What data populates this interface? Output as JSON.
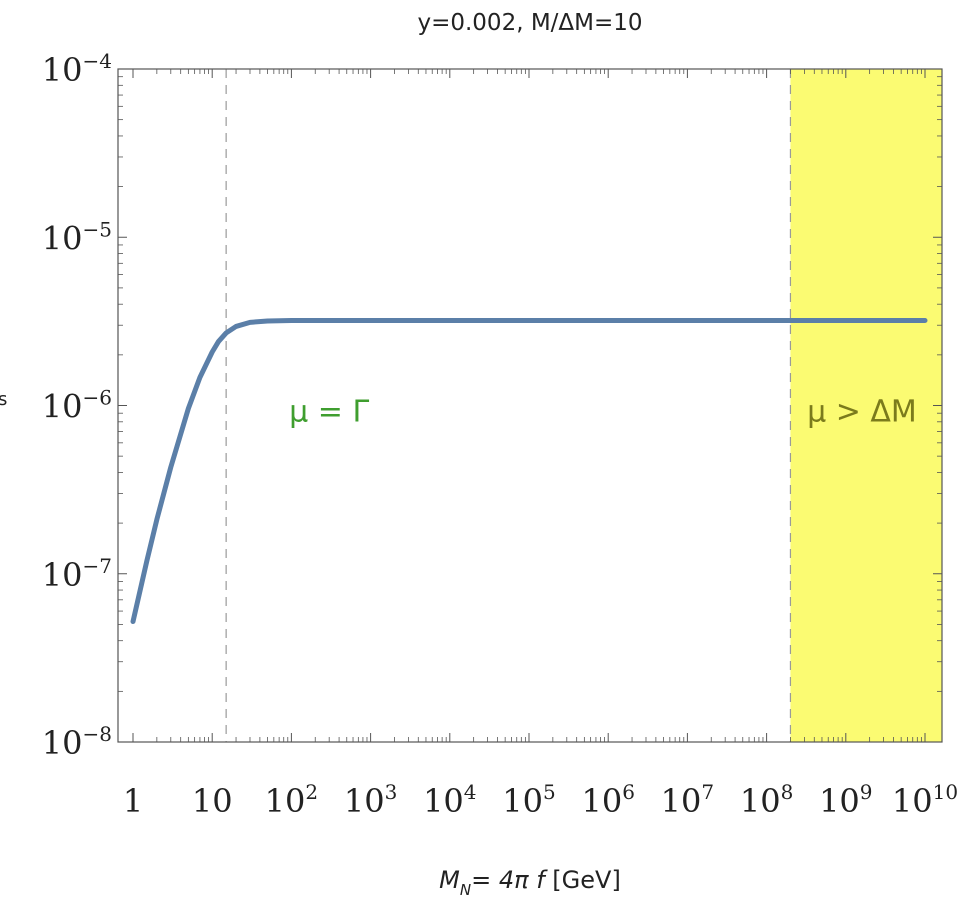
{
  "chart_data": {
    "type": "line",
    "title": "y=0.002, M/ΔM=10",
    "xlabel": "M_N= 4π f [GeV]",
    "xlabel_parts": {
      "main": "M",
      "sub": "N",
      "rest": "= 4π ",
      "f": "f",
      "unit": " [GeV]"
    },
    "ylabel": "s",
    "x_scale": "log",
    "y_scale": "log",
    "xlim": [
      1,
      10000000000
    ],
    "ylim": [
      1e-08,
      0.0001
    ],
    "x_ticks": [
      {
        "value": 1,
        "base": "1",
        "exp": ""
      },
      {
        "value": 10,
        "base": "10",
        "exp": ""
      },
      {
        "value": 100,
        "base": "10",
        "exp": "2"
      },
      {
        "value": 1000,
        "base": "10",
        "exp": "3"
      },
      {
        "value": 10000,
        "base": "10",
        "exp": "4"
      },
      {
        "value": 100000,
        "base": "10",
        "exp": "5"
      },
      {
        "value": 1000000,
        "base": "10",
        "exp": "6"
      },
      {
        "value": 10000000,
        "base": "10",
        "exp": "7"
      },
      {
        "value": 100000000,
        "base": "10",
        "exp": "8"
      },
      {
        "value": 1000000000,
        "base": "10",
        "exp": "9"
      },
      {
        "value": 10000000000,
        "base": "10",
        "exp": "10"
      }
    ],
    "y_ticks": [
      {
        "value": 0.0001,
        "base": "10",
        "exp": "−4"
      },
      {
        "value": 1e-05,
        "base": "10",
        "exp": "−5"
      },
      {
        "value": 1e-06,
        "base": "10",
        "exp": "−6"
      },
      {
        "value": 1e-07,
        "base": "10",
        "exp": "−7"
      },
      {
        "value": 1e-08,
        "base": "10",
        "exp": "−8"
      }
    ],
    "series": [
      {
        "color": "#5b7fa8",
        "x": [
          1,
          1.5,
          2,
          3,
          5,
          7,
          10,
          12,
          15,
          20,
          30,
          50,
          100,
          1000,
          10000,
          100000,
          1000000,
          10000000,
          100000000,
          1000000000,
          10000000000
        ],
        "y": [
          5.2e-08,
          1.2e-07,
          2.1e-07,
          4.3e-07,
          9.6e-07,
          1.47e-06,
          2.08e-06,
          2.4e-06,
          2.7e-06,
          2.95e-06,
          3.12e-06,
          3.18e-06,
          3.2e-06,
          3.2e-06,
          3.2e-06,
          3.2e-06,
          3.2e-06,
          3.2e-06,
          3.2e-06,
          3.2e-06,
          3.2e-06
        ]
      }
    ],
    "vlines": [
      {
        "x": 15,
        "style": "dashed"
      },
      {
        "x": 200000000,
        "style": "dashed"
      }
    ],
    "shaded_region": {
      "x_from": 200000000,
      "x_to": 10000000000,
      "color": "#fbfb72"
    },
    "annotations": [
      {
        "id": "mu-gamma",
        "text": "μ = Γ",
        "x": 300,
        "y": 1e-06,
        "color": "#3f9e2f"
      },
      {
        "id": "mu-deltam",
        "text": "μ > ΔM",
        "x": 1600000000,
        "y": 1e-06,
        "color": "#7b7b1c"
      }
    ],
    "grid": false,
    "legend": "none"
  }
}
